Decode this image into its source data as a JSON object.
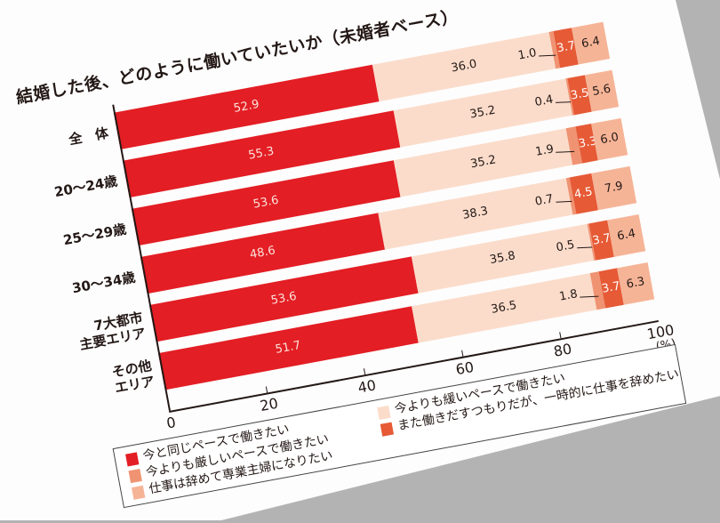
{
  "chart_data": {
    "type": "bar",
    "orientation": "horizontal-stacked",
    "title": "1-1　結婚した後、どのように働いていたいか（未婚者ベース）",
    "categories": [
      [
        "全　体"
      ],
      [
        "20～24歳"
      ],
      [
        "25～29歳"
      ],
      [
        "30～34歳"
      ],
      [
        "7大都市",
        "主要エリア"
      ],
      [
        "その他",
        "エリア"
      ]
    ],
    "series": [
      {
        "name": "今と同じペースで働きたい",
        "color": "#e31e24",
        "values": [
          52.9,
          55.3,
          53.6,
          48.6,
          53.6,
          51.7
        ]
      },
      {
        "name": "今よりも緩いペースで働きたい",
        "color": "#fbdccb",
        "values": [
          36.0,
          35.2,
          35.2,
          38.3,
          35.8,
          36.5
        ]
      },
      {
        "name": "今よりも厳しいペースで働きたい",
        "color": "#ef9372",
        "values": [
          1.0,
          0.4,
          1.9,
          0.7,
          0.5,
          1.8
        ]
      },
      {
        "name": "また働きだすつもりだが、一時的に仕事を辞めたい",
        "color": "#e65a36",
        "values": [
          3.7,
          3.5,
          3.3,
          4.5,
          3.7,
          3.7
        ]
      },
      {
        "name": "仕事は辞めて専業主婦になりたい",
        "color": "#f6b497",
        "values": [
          6.4,
          5.6,
          6.0,
          7.9,
          6.4,
          6.3
        ]
      }
    ],
    "xticks": [
      0,
      20,
      40,
      60,
      80,
      100
    ],
    "xlim": [
      0,
      100
    ],
    "unit_label": "(%)",
    "grid": false,
    "legend_placement": "bottom",
    "legend_order": [
      0,
      2,
      4,
      1,
      3
    ]
  }
}
